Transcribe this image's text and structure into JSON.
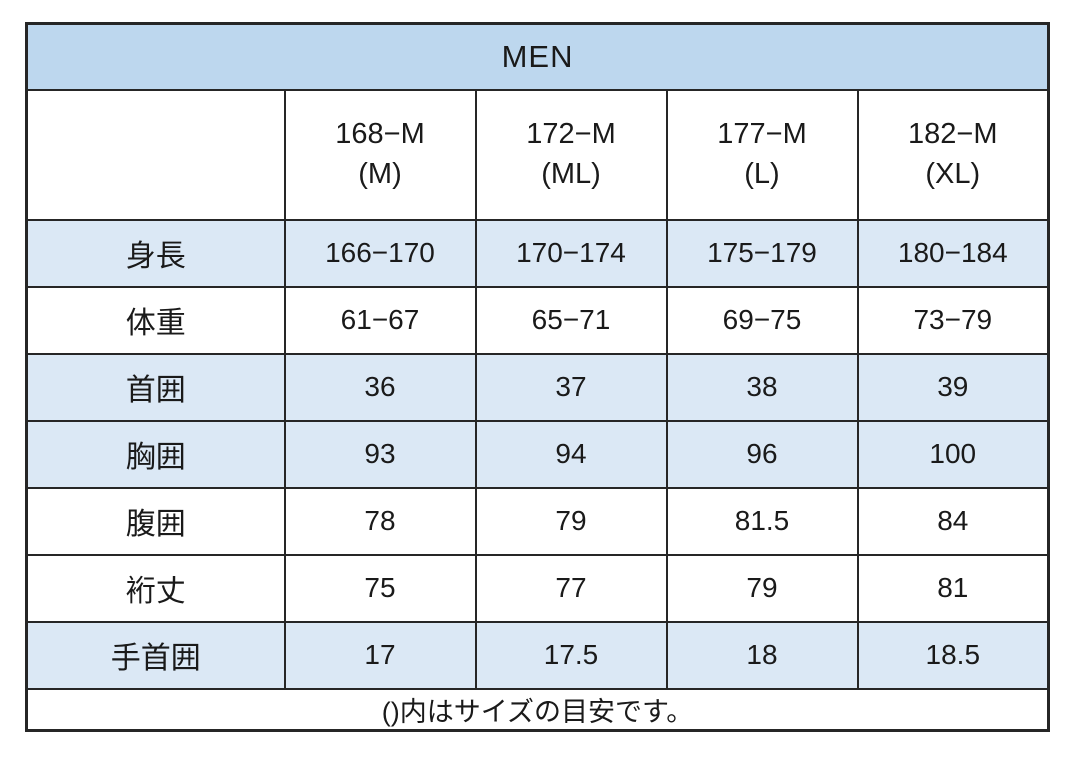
{
  "chart_data": {
    "type": "table",
    "title": "MEN",
    "column_headers": [
      {
        "code": "168−M",
        "size_label": "(M)"
      },
      {
        "code": "172−M",
        "size_label": "(ML)"
      },
      {
        "code": "177−M",
        "size_label": "(L)"
      },
      {
        "code": "182−M",
        "size_label": "(XL)"
      }
    ],
    "rows": [
      {
        "label": "身長",
        "values": [
          "166−170",
          "170−174",
          "175−179",
          "180−184"
        ],
        "shaded": true
      },
      {
        "label": "体重",
        "values": [
          "61−67",
          "65−71",
          "69−75",
          "73−79"
        ],
        "shaded": false
      },
      {
        "label": "首囲",
        "values": [
          "36",
          "37",
          "38",
          "39"
        ],
        "shaded": true
      },
      {
        "label": "胸囲",
        "values": [
          "93",
          "94",
          "96",
          "100"
        ],
        "shaded": true
      },
      {
        "label": "腹囲",
        "values": [
          "78",
          "79",
          "81.5",
          "84"
        ],
        "shaded": false
      },
      {
        "label": "裄丈",
        "values": [
          "75",
          "77",
          "79",
          "81"
        ],
        "shaded": false
      },
      {
        "label": "手首囲",
        "values": [
          "17",
          "17.5",
          "18",
          "18.5"
        ],
        "shaded": true
      }
    ],
    "footnote": "()内はサイズの目安です。"
  },
  "colors": {
    "title_row_blue": "#bdd7ee",
    "shaded_row_blue": "#dbe8f5",
    "border": "#262626",
    "text": "#1a1a1a",
    "background": "#ffffff"
  }
}
